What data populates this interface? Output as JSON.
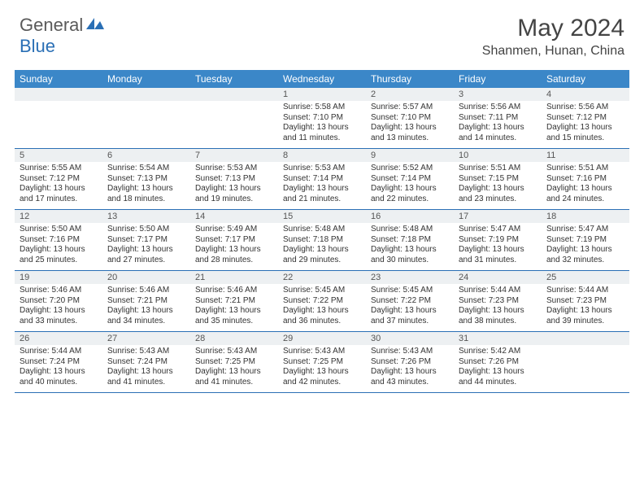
{
  "logo": {
    "general": "General",
    "blue": "Blue"
  },
  "title": "May 2024",
  "location": "Shanmen, Hunan, China",
  "headers": [
    "Sunday",
    "Monday",
    "Tuesday",
    "Wednesday",
    "Thursday",
    "Friday",
    "Saturday"
  ],
  "colors": {
    "header_bg": "#3b87c8",
    "header_fg": "#ffffff",
    "daynum_bg": "#edf0f2",
    "border": "#2a6fb5",
    "logo_blue": "#2a6fb5",
    "logo_gray": "#5a5a5a"
  },
  "weeks": [
    [
      {
        "day": "",
        "sunrise": "",
        "sunset": "",
        "daylight": ""
      },
      {
        "day": "",
        "sunrise": "",
        "sunset": "",
        "daylight": ""
      },
      {
        "day": "",
        "sunrise": "",
        "sunset": "",
        "daylight": ""
      },
      {
        "day": "1",
        "sunrise": "Sunrise: 5:58 AM",
        "sunset": "Sunset: 7:10 PM",
        "daylight": "Daylight: 13 hours and 11 minutes."
      },
      {
        "day": "2",
        "sunrise": "Sunrise: 5:57 AM",
        "sunset": "Sunset: 7:10 PM",
        "daylight": "Daylight: 13 hours and 13 minutes."
      },
      {
        "day": "3",
        "sunrise": "Sunrise: 5:56 AM",
        "sunset": "Sunset: 7:11 PM",
        "daylight": "Daylight: 13 hours and 14 minutes."
      },
      {
        "day": "4",
        "sunrise": "Sunrise: 5:56 AM",
        "sunset": "Sunset: 7:12 PM",
        "daylight": "Daylight: 13 hours and 15 minutes."
      }
    ],
    [
      {
        "day": "5",
        "sunrise": "Sunrise: 5:55 AM",
        "sunset": "Sunset: 7:12 PM",
        "daylight": "Daylight: 13 hours and 17 minutes."
      },
      {
        "day": "6",
        "sunrise": "Sunrise: 5:54 AM",
        "sunset": "Sunset: 7:13 PM",
        "daylight": "Daylight: 13 hours and 18 minutes."
      },
      {
        "day": "7",
        "sunrise": "Sunrise: 5:53 AM",
        "sunset": "Sunset: 7:13 PM",
        "daylight": "Daylight: 13 hours and 19 minutes."
      },
      {
        "day": "8",
        "sunrise": "Sunrise: 5:53 AM",
        "sunset": "Sunset: 7:14 PM",
        "daylight": "Daylight: 13 hours and 21 minutes."
      },
      {
        "day": "9",
        "sunrise": "Sunrise: 5:52 AM",
        "sunset": "Sunset: 7:14 PM",
        "daylight": "Daylight: 13 hours and 22 minutes."
      },
      {
        "day": "10",
        "sunrise": "Sunrise: 5:51 AM",
        "sunset": "Sunset: 7:15 PM",
        "daylight": "Daylight: 13 hours and 23 minutes."
      },
      {
        "day": "11",
        "sunrise": "Sunrise: 5:51 AM",
        "sunset": "Sunset: 7:16 PM",
        "daylight": "Daylight: 13 hours and 24 minutes."
      }
    ],
    [
      {
        "day": "12",
        "sunrise": "Sunrise: 5:50 AM",
        "sunset": "Sunset: 7:16 PM",
        "daylight": "Daylight: 13 hours and 25 minutes."
      },
      {
        "day": "13",
        "sunrise": "Sunrise: 5:50 AM",
        "sunset": "Sunset: 7:17 PM",
        "daylight": "Daylight: 13 hours and 27 minutes."
      },
      {
        "day": "14",
        "sunrise": "Sunrise: 5:49 AM",
        "sunset": "Sunset: 7:17 PM",
        "daylight": "Daylight: 13 hours and 28 minutes."
      },
      {
        "day": "15",
        "sunrise": "Sunrise: 5:48 AM",
        "sunset": "Sunset: 7:18 PM",
        "daylight": "Daylight: 13 hours and 29 minutes."
      },
      {
        "day": "16",
        "sunrise": "Sunrise: 5:48 AM",
        "sunset": "Sunset: 7:18 PM",
        "daylight": "Daylight: 13 hours and 30 minutes."
      },
      {
        "day": "17",
        "sunrise": "Sunrise: 5:47 AM",
        "sunset": "Sunset: 7:19 PM",
        "daylight": "Daylight: 13 hours and 31 minutes."
      },
      {
        "day": "18",
        "sunrise": "Sunrise: 5:47 AM",
        "sunset": "Sunset: 7:19 PM",
        "daylight": "Daylight: 13 hours and 32 minutes."
      }
    ],
    [
      {
        "day": "19",
        "sunrise": "Sunrise: 5:46 AM",
        "sunset": "Sunset: 7:20 PM",
        "daylight": "Daylight: 13 hours and 33 minutes."
      },
      {
        "day": "20",
        "sunrise": "Sunrise: 5:46 AM",
        "sunset": "Sunset: 7:21 PM",
        "daylight": "Daylight: 13 hours and 34 minutes."
      },
      {
        "day": "21",
        "sunrise": "Sunrise: 5:46 AM",
        "sunset": "Sunset: 7:21 PM",
        "daylight": "Daylight: 13 hours and 35 minutes."
      },
      {
        "day": "22",
        "sunrise": "Sunrise: 5:45 AM",
        "sunset": "Sunset: 7:22 PM",
        "daylight": "Daylight: 13 hours and 36 minutes."
      },
      {
        "day": "23",
        "sunrise": "Sunrise: 5:45 AM",
        "sunset": "Sunset: 7:22 PM",
        "daylight": "Daylight: 13 hours and 37 minutes."
      },
      {
        "day": "24",
        "sunrise": "Sunrise: 5:44 AM",
        "sunset": "Sunset: 7:23 PM",
        "daylight": "Daylight: 13 hours and 38 minutes."
      },
      {
        "day": "25",
        "sunrise": "Sunrise: 5:44 AM",
        "sunset": "Sunset: 7:23 PM",
        "daylight": "Daylight: 13 hours and 39 minutes."
      }
    ],
    [
      {
        "day": "26",
        "sunrise": "Sunrise: 5:44 AM",
        "sunset": "Sunset: 7:24 PM",
        "daylight": "Daylight: 13 hours and 40 minutes."
      },
      {
        "day": "27",
        "sunrise": "Sunrise: 5:43 AM",
        "sunset": "Sunset: 7:24 PM",
        "daylight": "Daylight: 13 hours and 41 minutes."
      },
      {
        "day": "28",
        "sunrise": "Sunrise: 5:43 AM",
        "sunset": "Sunset: 7:25 PM",
        "daylight": "Daylight: 13 hours and 41 minutes."
      },
      {
        "day": "29",
        "sunrise": "Sunrise: 5:43 AM",
        "sunset": "Sunset: 7:25 PM",
        "daylight": "Daylight: 13 hours and 42 minutes."
      },
      {
        "day": "30",
        "sunrise": "Sunrise: 5:43 AM",
        "sunset": "Sunset: 7:26 PM",
        "daylight": "Daylight: 13 hours and 43 minutes."
      },
      {
        "day": "31",
        "sunrise": "Sunrise: 5:42 AM",
        "sunset": "Sunset: 7:26 PM",
        "daylight": "Daylight: 13 hours and 44 minutes."
      },
      {
        "day": "",
        "sunrise": "",
        "sunset": "",
        "daylight": ""
      }
    ]
  ]
}
